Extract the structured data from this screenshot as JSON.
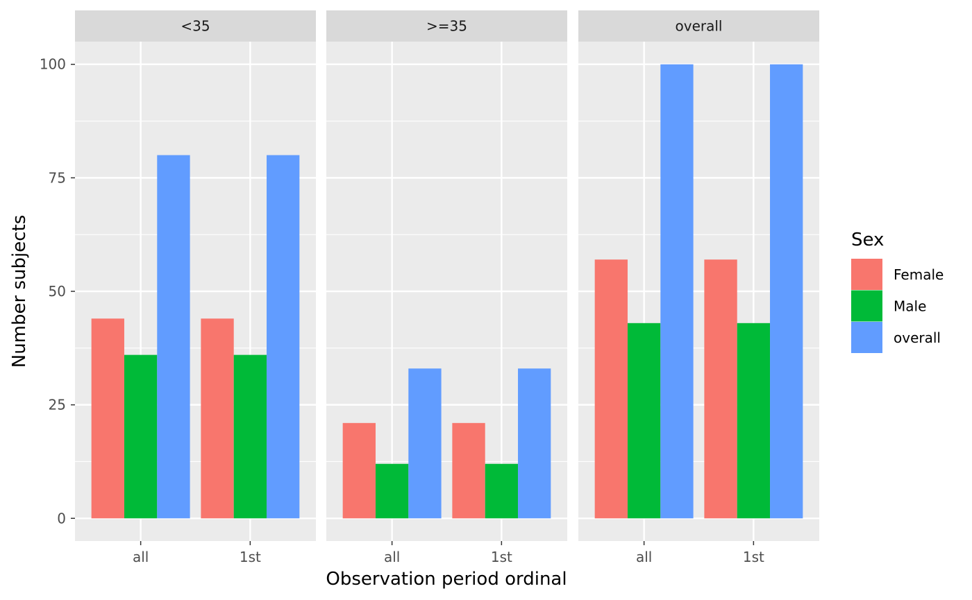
{
  "chart_data": {
    "type": "bar",
    "facets": [
      "<35",
      ">=35",
      "overall"
    ],
    "categories": [
      "all",
      "1st"
    ],
    "series": [
      {
        "name": "Female",
        "color": "#F8766D",
        "values": {
          "<35": [
            44,
            44
          ],
          ">=35": [
            21,
            21
          ],
          "overall": [
            57,
            57
          ]
        }
      },
      {
        "name": "Male",
        "color": "#00BA38",
        "values": {
          "<35": [
            36,
            36
          ],
          ">=35": [
            12,
            12
          ],
          "overall": [
            43,
            43
          ]
        }
      },
      {
        "name": "overall",
        "color": "#619CFF",
        "values": {
          "<35": [
            80,
            80
          ],
          ">=35": [
            33,
            33
          ],
          "overall": [
            100,
            100
          ]
        }
      }
    ],
    "ylim": [
      -5,
      105
    ],
    "yticks": [
      0,
      25,
      50,
      75,
      100
    ],
    "xlabel": "Observation period ordinal",
    "ylabel": "Number subjects",
    "legend_title": "Sex",
    "legend_position": "right",
    "grid": true
  }
}
